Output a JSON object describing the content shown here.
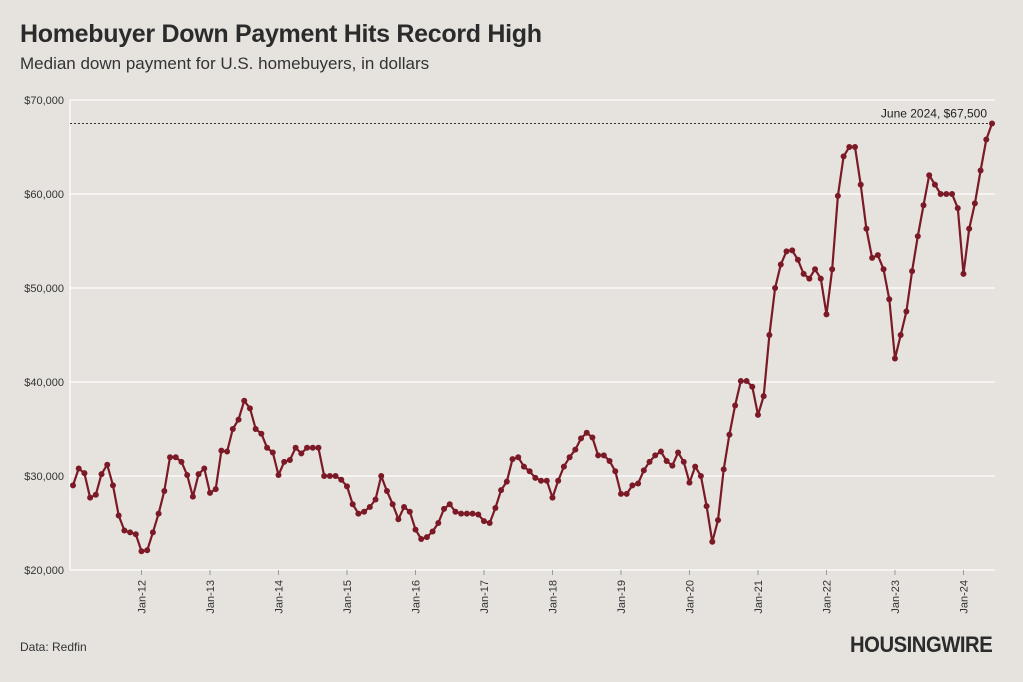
{
  "header": {
    "title": "Homebuyer Down Payment Hits Record High",
    "subtitle": "Median down payment for U.S. homebuyers, in dollars"
  },
  "footer": {
    "source": "Data: Redfin",
    "logo_text": "HOUSINGWIRE"
  },
  "colors": {
    "background": "#e6e3df",
    "line": "#7b1a26",
    "grid": "#ffffff",
    "reference_line": "#333333"
  },
  "chart_data": {
    "type": "line",
    "title": "Homebuyer Down Payment Hits Record High",
    "subtitle": "Median down payment for U.S. homebuyers, in dollars",
    "xlabel": "",
    "ylabel": "",
    "ylim": [
      20000,
      70000
    ],
    "yticks": [
      20000,
      30000,
      40000,
      50000,
      60000,
      70000
    ],
    "ytick_labels": [
      "$20,000",
      "$30,000",
      "$40,000",
      "$50,000",
      "$60,000",
      "$70,000"
    ],
    "xtick_labels": [
      "Jan-12",
      "Jan-13",
      "Jan-14",
      "Jan-15",
      "Jan-16",
      "Jan-17",
      "Jan-18",
      "Jan-19",
      "Jan-20",
      "Jan-21",
      "Jan-22",
      "Jan-23",
      "Jan-24"
    ],
    "x_start": "Jan-11",
    "x_end": "Jun-24",
    "grid": true,
    "series": [
      {
        "values": [
          29000,
          30800,
          30300,
          27700,
          28000,
          30200,
          31200,
          29000,
          25800,
          24200,
          24000,
          23800,
          22000,
          22100,
          24000,
          26000,
          28400,
          32000,
          32000,
          31500,
          30100,
          27800,
          30200,
          30800,
          28200,
          28600,
          32700,
          32600,
          35000,
          36000,
          38000,
          37200,
          35000,
          34500,
          33000,
          32500,
          30100,
          31500,
          31700,
          33000,
          32400,
          33000,
          33000,
          33000,
          30000,
          30000,
          30000,
          29600,
          28900,
          27000,
          26000,
          26200,
          26700,
          27500,
          30000,
          28400,
          27000,
          25400,
          26700,
          26200,
          24300,
          23300,
          23500,
          24100,
          25000,
          26500,
          27000,
          26200,
          26000,
          26000,
          26000,
          25900,
          25200,
          25000,
          26600,
          28500,
          29400,
          31800,
          32000,
          31000,
          30500,
          29800,
          29500,
          29500,
          27700,
          29500,
          31000,
          32000,
          32800,
          34000,
          34600,
          34100,
          32200,
          32200,
          31600,
          30500,
          28100,
          28100,
          29000,
          29200,
          30600,
          31500,
          32200,
          32600,
          31600,
          31100,
          32500,
          31500,
          29300,
          31000,
          30000,
          26800,
          23000,
          25300,
          30700,
          34400,
          37500,
          40100,
          40100,
          39500,
          36500,
          38500,
          45000,
          50000,
          52500,
          53900,
          54000,
          53000,
          51500,
          51000,
          52000,
          51000,
          47200,
          52000,
          59800,
          64000,
          65000,
          65000,
          61000,
          56300,
          53200,
          53500,
          52000,
          48800,
          42500,
          45000,
          47500,
          51800,
          55500,
          58800,
          62000,
          61000,
          60000,
          60000,
          60000,
          58500,
          51500,
          56300,
          59000,
          62500,
          65800,
          67500
        ]
      }
    ],
    "annotation": {
      "label": "June 2024, $67,500",
      "value": 67500
    }
  }
}
